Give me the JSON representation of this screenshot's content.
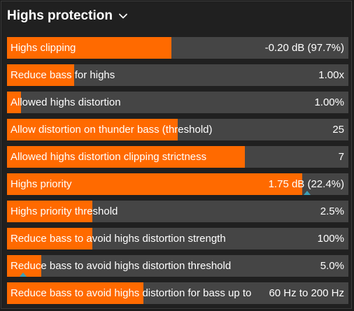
{
  "panel": {
    "title": "Highs protection",
    "toggle_icon": "chevron-down-icon"
  },
  "colors": {
    "fill": "#ff6a00",
    "track": "#454545",
    "background": "#202020",
    "marker": "#3aa0b8"
  },
  "sliders": [
    {
      "label": "Highs clipping",
      "value": "-0.20 dB (97.7%)",
      "fill_fraction": 0.481
    },
    {
      "label": "Reduce bass for highs",
      "value": "1.00x",
      "fill_fraction": 0.197
    },
    {
      "label": "Allowed highs distortion",
      "value": "1.00%",
      "fill_fraction": 0.041
    },
    {
      "label": "Allow distortion on thunder bass (threshold)",
      "value": "25",
      "fill_fraction": 0.5
    },
    {
      "label": "Allowed highs distortion clipping strictness",
      "value": "7",
      "fill_fraction": 0.697
    },
    {
      "label": "Highs priority",
      "value": "1.75 dB (22.4%)",
      "fill_fraction": 0.865,
      "marker_fraction": 0.879
    },
    {
      "label": "Highs priority threshold",
      "value": "2.5%",
      "fill_fraction": 0.25
    },
    {
      "label": "Reduce bass to avoid highs distortion strength",
      "value": "100%",
      "fill_fraction": 0.25
    },
    {
      "label": "Reduce bass to avoid highs distortion threshold",
      "value": "5.0%",
      "fill_fraction": 0.1,
      "marker_fraction": 0.047
    },
    {
      "label": "Reduce bass to avoid highs distortion for bass up to",
      "value": "60 Hz to 200 Hz",
      "fill_fraction": 0.4
    }
  ]
}
